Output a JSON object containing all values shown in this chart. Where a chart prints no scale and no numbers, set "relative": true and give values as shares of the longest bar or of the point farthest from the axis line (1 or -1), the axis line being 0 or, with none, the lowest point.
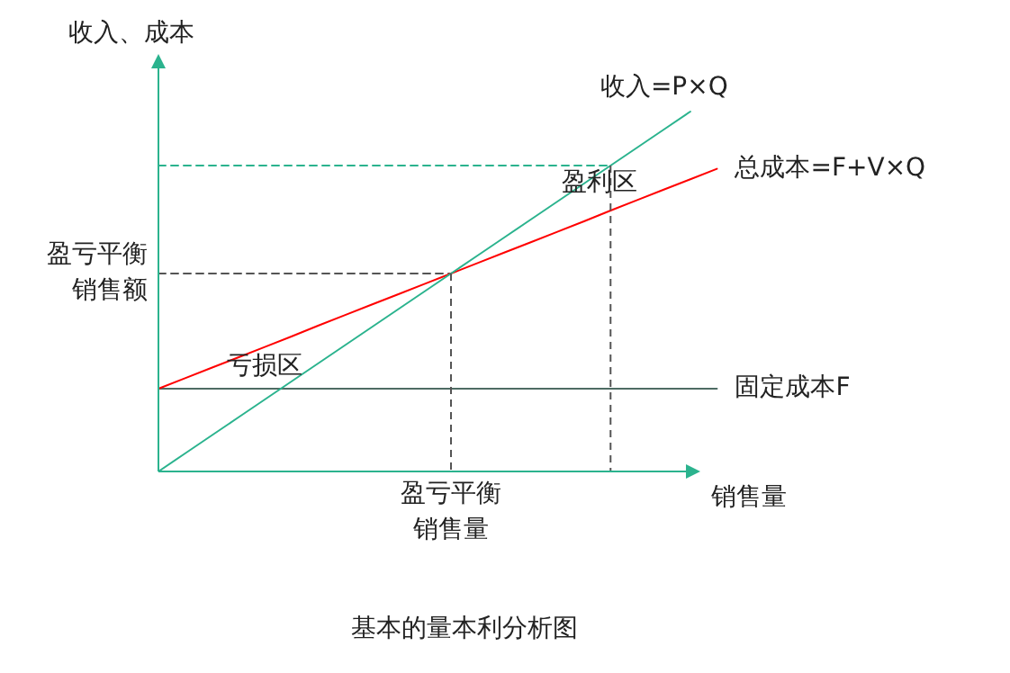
{
  "chart_data": {
    "type": "line",
    "title": "基本的量本利分析图",
    "xlabel": "销售量",
    "ylabel": "收入、成本",
    "relative": true,
    "marker": "none",
    "categories": [
      null,
      null,
      null,
      null,
      null,
      null,
      null,
      null,
      null,
      null,
      null,
      null,
      null,
      null,
      null,
      null,
      null,
      null,
      null,
      null,
      null,
      null,
      null
    ],
    "series": [
      {
        "name": "收入=P×Q",
        "color": "#2bb38e",
        "line_style": "solid",
        "values": [
          0,
          0.05,
          0.1,
          0.15,
          0.2,
          0.25,
          0.3,
          0.35,
          0.4,
          0.45,
          0.5,
          0.55,
          0.6,
          0.65,
          0.7,
          0.75,
          0.8,
          0.85,
          0.9,
          0.95,
          1,
          null,
          null
        ]
      },
      {
        "name": "总成本=F+V×Q",
        "color": "#ff0000",
        "line_style": "solid",
        "values": [
          0.23,
          0.259,
          0.288,
          0.317,
          0.346,
          0.375,
          0.405,
          0.434,
          0.463,
          0.492,
          0.521,
          0.55,
          0.579,
          0.608,
          0.637,
          0.666,
          0.695,
          0.725,
          0.754,
          0.783,
          0.812,
          0.841,
          null
        ]
      },
      {
        "name": "固定成本F",
        "color": "#4d6b63",
        "line_style": "solid",
        "values": [
          0.23,
          0.23,
          0.23,
          0.23,
          0.23,
          0.23,
          0.23,
          0.23,
          0.23,
          0.23,
          0.23,
          0.23,
          0.23,
          0.23,
          0.23,
          0.23,
          0.23,
          0.23,
          0.23,
          0.23,
          0.23,
          0.23,
          null
        ]
      },
      {
        "color": "#555555",
        "line_style": "dashed",
        "values": [
          0.55,
          0.55,
          0.55,
          0.55,
          0.55,
          0.55,
          0.55,
          0.55,
          0.55,
          0.55,
          0.55,
          0.55,
          null,
          null,
          null,
          null,
          null,
          null,
          null,
          null,
          null,
          null,
          null
        ]
      },
      {
        "color": "#2bb38e",
        "line_style": "dashed",
        "values": [
          0.85,
          0.85,
          0.85,
          0.85,
          0.85,
          0.85,
          0.85,
          0.85,
          0.85,
          0.85,
          0.85,
          0.85,
          0.85,
          0.85,
          0.85,
          0.85,
          0.85,
          0.85,
          null,
          null,
          null,
          null,
          null
        ]
      }
    ],
    "annotations": [
      "盈利区",
      "亏损区",
      "盈亏平衡销售量",
      "盈亏平衡销售额"
    ]
  }
}
